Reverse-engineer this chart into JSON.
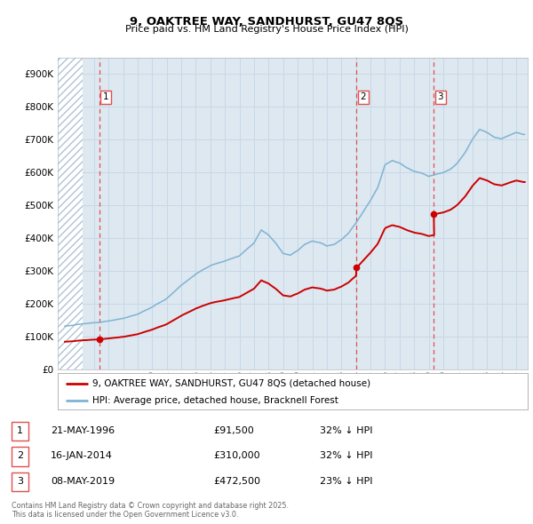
{
  "title": "9, OAKTREE WAY, SANDHURST, GU47 8QS",
  "subtitle": "Price paid vs. HM Land Registry's House Price Index (HPI)",
  "legend_line1": "9, OAKTREE WAY, SANDHURST, GU47 8QS (detached house)",
  "legend_line2": "HPI: Average price, detached house, Bracknell Forest",
  "footer": "Contains HM Land Registry data © Crown copyright and database right 2025.\nThis data is licensed under the Open Government Licence v3.0.",
  "sale_points": [
    {
      "label": "1",
      "date": "21-MAY-1996",
      "price": 91500,
      "year": 1996.38
    },
    {
      "label": "2",
      "date": "16-JAN-2014",
      "price": 310000,
      "year": 2014.04
    },
    {
      "label": "3",
      "date": "08-MAY-2019",
      "price": 472500,
      "year": 2019.35
    }
  ],
  "table_rows": [
    {
      "num": "1",
      "date": "21-MAY-1996",
      "price": "£91,500",
      "note": "32% ↓ HPI"
    },
    {
      "num": "2",
      "date": "16-JAN-2014",
      "price": "£310,000",
      "note": "32% ↓ HPI"
    },
    {
      "num": "3",
      "date": "08-MAY-2019",
      "price": "£472,500",
      "note": "23% ↓ HPI"
    }
  ],
  "ylim": [
    0,
    950000
  ],
  "xlim_left": 1993.5,
  "xlim_right": 2025.8,
  "hatch_end_year": 1995.2,
  "red_line_color": "#cc0000",
  "blue_line_color": "#7fb3d3",
  "grid_color": "#c8d8e8",
  "bg_color": "#dde8f0",
  "hatch_fg_color": "#b0c4d4",
  "sale_marker_color": "#cc0000",
  "dashed_vline_color": "#e05050",
  "hpi_anchors": [
    [
      1994.0,
      132000
    ],
    [
      1995.0,
      138000
    ],
    [
      1996.0,
      142000
    ],
    [
      1997.0,
      150000
    ],
    [
      1998.0,
      158000
    ],
    [
      1999.0,
      170000
    ],
    [
      2000.0,
      192000
    ],
    [
      2001.0,
      218000
    ],
    [
      2002.0,
      260000
    ],
    [
      2003.0,
      295000
    ],
    [
      2004.0,
      320000
    ],
    [
      2005.0,
      335000
    ],
    [
      2006.0,
      350000
    ],
    [
      2007.0,
      390000
    ],
    [
      2007.5,
      430000
    ],
    [
      2008.0,
      415000
    ],
    [
      2008.5,
      390000
    ],
    [
      2009.0,
      360000
    ],
    [
      2009.5,
      355000
    ],
    [
      2010.0,
      370000
    ],
    [
      2010.5,
      390000
    ],
    [
      2011.0,
      400000
    ],
    [
      2011.5,
      395000
    ],
    [
      2012.0,
      385000
    ],
    [
      2012.5,
      390000
    ],
    [
      2013.0,
      405000
    ],
    [
      2013.5,
      425000
    ],
    [
      2014.0,
      455000
    ],
    [
      2014.5,
      490000
    ],
    [
      2015.0,
      525000
    ],
    [
      2015.5,
      565000
    ],
    [
      2016.0,
      635000
    ],
    [
      2016.5,
      648000
    ],
    [
      2017.0,
      640000
    ],
    [
      2017.5,
      625000
    ],
    [
      2018.0,
      615000
    ],
    [
      2018.5,
      610000
    ],
    [
      2019.0,
      600000
    ],
    [
      2019.5,
      605000
    ],
    [
      2020.0,
      610000
    ],
    [
      2020.5,
      620000
    ],
    [
      2021.0,
      640000
    ],
    [
      2021.5,
      670000
    ],
    [
      2022.0,
      710000
    ],
    [
      2022.5,
      740000
    ],
    [
      2023.0,
      730000
    ],
    [
      2023.5,
      715000
    ],
    [
      2024.0,
      710000
    ],
    [
      2024.5,
      720000
    ],
    [
      2025.0,
      730000
    ],
    [
      2025.5,
      725000
    ]
  ]
}
